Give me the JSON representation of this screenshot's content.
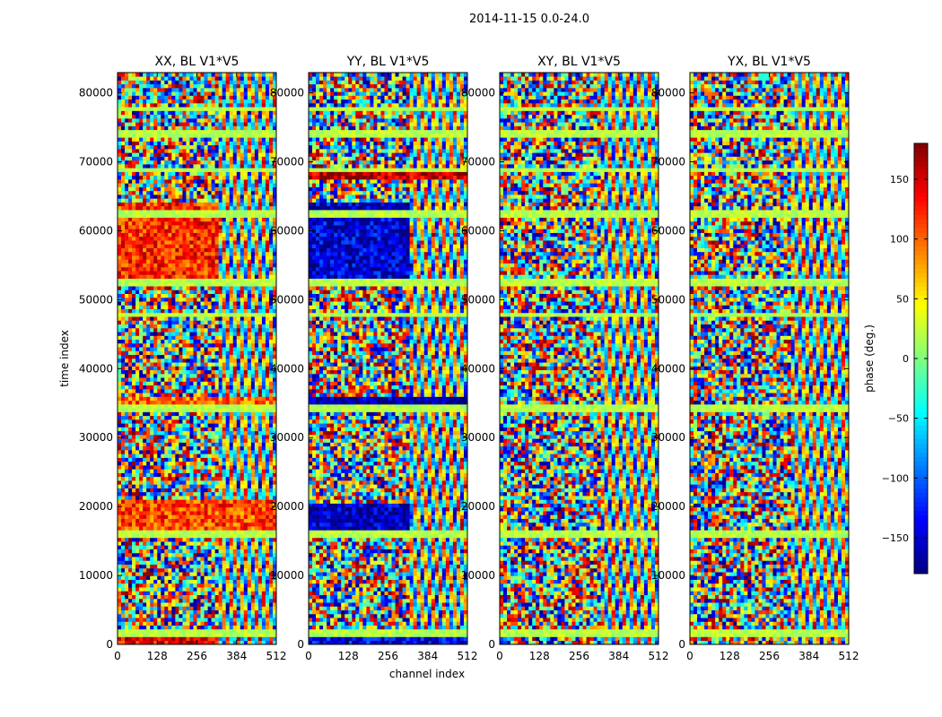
{
  "figure": {
    "suptitle": "2014-11-15 0.0-24.0"
  },
  "chart_data": {
    "type": "heatmap",
    "suptitle": "2014-11-15 0.0-24.0",
    "ylabel": "time index",
    "xlabel": "channel index",
    "xlim": [
      0,
      512
    ],
    "ylim": [
      0,
      82944
    ],
    "xticks": [
      0,
      128,
      256,
      384,
      512
    ],
    "yticks": [
      0,
      10000,
      20000,
      30000,
      40000,
      50000,
      60000,
      70000,
      80000
    ],
    "panels": [
      {
        "title": "XX, BL V1*V5",
        "bands": [
          {
            "y0": 52000,
            "y1": 64000,
            "bias": 120,
            "x1": 320
          },
          {
            "y0": 34500,
            "y1": 36000,
            "bias": 100,
            "x1": 512
          },
          {
            "y0": 16000,
            "y1": 21000,
            "bias": 110,
            "x1": 512
          },
          {
            "y0": 0,
            "y1": 1500,
            "bias": 140,
            "x1": 320
          }
        ]
      },
      {
        "title": "YY, BL V1*V5",
        "bands": [
          {
            "y0": 52000,
            "y1": 64000,
            "bias": -150,
            "x1": 320
          },
          {
            "y0": 34800,
            "y1": 36200,
            "bias": -170,
            "x1": 512
          },
          {
            "y0": 16500,
            "y1": 20500,
            "bias": -160,
            "x1": 320
          },
          {
            "y0": 0,
            "y1": 1500,
            "bias": -140,
            "x1": 512
          },
          {
            "y0": 67500,
            "y1": 68500,
            "bias": 160,
            "x1": 512
          }
        ]
      },
      {
        "title": "XY, BL V1*V5",
        "bands": []
      },
      {
        "title": "YX, BL V1*V5",
        "bands": []
      }
    ],
    "colorbar": {
      "label": "phase (deg.)",
      "range": [
        -180,
        180
      ],
      "ticks": [
        -150,
        -100,
        -50,
        0,
        50,
        100,
        150
      ],
      "colormap": "jet"
    }
  }
}
